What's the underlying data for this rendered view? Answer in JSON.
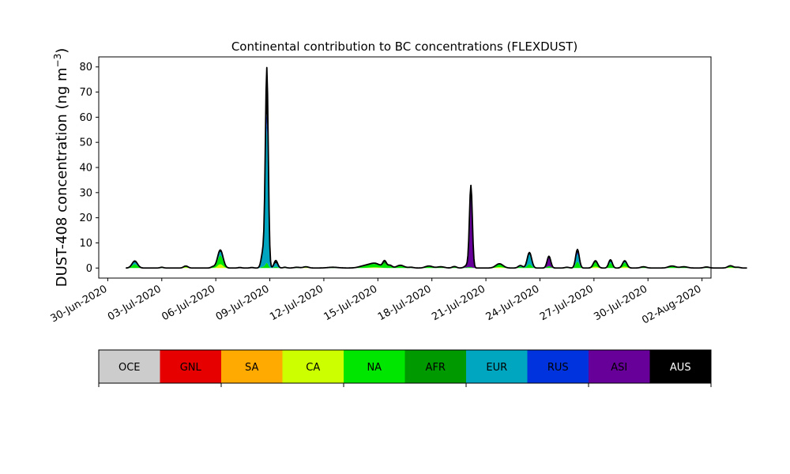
{
  "chart_data": {
    "type": "area",
    "stacked": true,
    "title": "Continental contribution to BC concentrations (FLEXDUST)",
    "ylabel": "DUST-408 concentration (ng m",
    "ylabel_unit_exponent": "−3",
    "ylabel_close": ")",
    "xlabel": "",
    "ylim": [
      -4,
      84
    ],
    "xlim": [
      "2020-06-29T12:00",
      "2020-08-02T12:00"
    ],
    "y_ticks": [
      0,
      10,
      20,
      30,
      40,
      50,
      60,
      70,
      80
    ],
    "x_ticks": [
      "30-Jun-2020",
      "03-Jul-2020",
      "06-Jul-2020",
      "09-Jul-2020",
      "12-Jul-2020",
      "15-Jul-2020",
      "18-Jul-2020",
      "21-Jul-2020",
      "24-Jul-2020",
      "27-Jul-2020",
      "30-Jul-2020",
      "02-Aug-2020"
    ],
    "x_tick_dates": [
      "2020-06-30",
      "2020-07-03",
      "2020-07-06",
      "2020-07-09",
      "2020-07-12",
      "2020-07-15",
      "2020-07-18",
      "2020-07-21",
      "2020-07-24",
      "2020-07-27",
      "2020-07-30",
      "2020-08-02"
    ],
    "grid": false,
    "legend_position": "bottom colorbar",
    "series": [
      {
        "name": "OCE",
        "color": "#cccccc"
      },
      {
        "name": "GNL",
        "color": "#e60000"
      },
      {
        "name": "SA",
        "color": "#ffaa00"
      },
      {
        "name": "CA",
        "color": "#ccff00"
      },
      {
        "name": "NA",
        "color": "#00e600"
      },
      {
        "name": "AFR",
        "color": "#009900"
      },
      {
        "name": "EUR",
        "color": "#00a5c0"
      },
      {
        "name": "RUS",
        "color": "#0033dd"
      },
      {
        "name": "ASI",
        "color": "#660099"
      },
      {
        "name": "AUS",
        "color": "#000000"
      }
    ],
    "peaks": [
      {
        "date": "2020-07-01T12:00",
        "width_days": 0.15,
        "NA": 1.5,
        "EUR": 0.8,
        "AUS": 0.5
      },
      {
        "date": "2020-07-03T00:00",
        "width_days": 0.1,
        "NA": 0.3
      },
      {
        "date": "2020-07-04T08:00",
        "width_days": 0.12,
        "CA": 0.3,
        "NA": 0.5
      },
      {
        "date": "2020-07-05T20:00",
        "width_days": 0.1,
        "NA": 0.5
      },
      {
        "date": "2020-07-06T06:00",
        "width_days": 0.15,
        "CA": 1.5,
        "NA": 3.5,
        "EUR": 1.5,
        "AUS": 0.7
      },
      {
        "date": "2020-07-07T08:00",
        "width_days": 0.1,
        "NA": 0.2
      },
      {
        "date": "2020-07-08T00:00",
        "width_days": 0.1,
        "NA": 0.2
      },
      {
        "date": "2020-07-08T20:00",
        "width_days": 0.08,
        "NA": 2,
        "EUR": 55,
        "RUS": 4,
        "AUS": 18
      },
      {
        "date": "2020-07-08T15:00",
        "width_days": 0.1,
        "NA": 0.5,
        "EUR": 5,
        "AUS": 1
      },
      {
        "date": "2020-07-09T08:00",
        "width_days": 0.1,
        "NA": 0.5,
        "EUR": 1.5,
        "AUS": 1
      },
      {
        "date": "2020-07-09T20:00",
        "width_days": 0.1,
        "NA": 0.3
      },
      {
        "date": "2020-07-10T12:00",
        "width_days": 0.15,
        "NA": 0.3
      },
      {
        "date": "2020-07-11T00:00",
        "width_days": 0.15,
        "CA": 0.2,
        "NA": 0.3
      },
      {
        "date": "2020-07-12T12:00",
        "width_days": 0.3,
        "NA": 0.3
      },
      {
        "date": "2020-07-14T06:00",
        "width_days": 0.3,
        "NA": 0.6,
        "AFR": 0.2
      },
      {
        "date": "2020-07-14T20:00",
        "width_days": 0.3,
        "CA": 0.3,
        "NA": 1.2,
        "AFR": 0.3
      },
      {
        "date": "2020-07-15T09:00",
        "width_days": 0.1,
        "NA": 1.5,
        "AFR": 0.5,
        "AUS": 0.6
      },
      {
        "date": "2020-07-15T16:00",
        "width_days": 0.12,
        "NA": 0.8,
        "AFR": 0.3
      },
      {
        "date": "2020-07-16T06:00",
        "width_days": 0.2,
        "NA": 0.8,
        "AFR": 0.3
      },
      {
        "date": "2020-07-16T20:00",
        "width_days": 0.15,
        "NA": 0.3
      },
      {
        "date": "2020-07-17T20:00",
        "width_days": 0.2,
        "NA": 0.6,
        "AFR": 0.2
      },
      {
        "date": "2020-07-18T12:00",
        "width_days": 0.2,
        "NA": 0.5
      },
      {
        "date": "2020-07-19T06:00",
        "width_days": 0.12,
        "NA": 0.3,
        "ASI": 0.3
      },
      {
        "date": "2020-07-20T00:00",
        "width_days": 0.15,
        "NA": 0.3,
        "ASI": 1.0
      },
      {
        "date": "2020-07-20T04:00",
        "width_days": 0.08,
        "NA": 0.2,
        "ASI": 28,
        "AUS": 4
      },
      {
        "date": "2020-07-21T18:00",
        "width_days": 0.2,
        "CA": 0.4,
        "NA": 1.0,
        "AFR": 0.3
      },
      {
        "date": "2020-07-22T22:00",
        "width_days": 0.12,
        "NA": 0.5,
        "EUR": 0.5
      },
      {
        "date": "2020-07-23T10:00",
        "width_days": 0.12,
        "NA": 1.5,
        "EUR": 4.0,
        "AUS": 0.7
      },
      {
        "date": "2020-07-24T12:00",
        "width_days": 0.1,
        "NA": 0.8,
        "ASI": 3.3,
        "AUS": 0.6
      },
      {
        "date": "2020-07-25T12:00",
        "width_days": 0.12,
        "NA": 0.3
      },
      {
        "date": "2020-07-26T02:00",
        "width_days": 0.1,
        "NA": 2.5,
        "EUR": 3.0,
        "RUS": 0.7,
        "AUS": 1.2
      },
      {
        "date": "2020-07-27T02:00",
        "width_days": 0.12,
        "CA": 0.6,
        "NA": 1.5,
        "AFR": 0.4,
        "AUS": 0.4
      },
      {
        "date": "2020-07-27T22:00",
        "width_days": 0.1,
        "NA": 2.0,
        "EUR": 0.6,
        "AUS": 0.7
      },
      {
        "date": "2020-07-28T17:00",
        "width_days": 0.12,
        "CA": 0.6,
        "NA": 1.5,
        "EUR": 0.3,
        "AUS": 0.5
      },
      {
        "date": "2020-07-29T18:00",
        "width_days": 0.15,
        "NA": 0.5
      },
      {
        "date": "2020-07-31T08:00",
        "width_days": 0.2,
        "NA": 0.6,
        "AFR": 0.2
      },
      {
        "date": "2020-08-01T00:00",
        "width_days": 0.2,
        "NA": 0.5
      },
      {
        "date": "2020-08-02T06:00",
        "width_days": 0.15,
        "NA": 0.4
      },
      {
        "date": "2020-08-03T14:00",
        "width_days": 0.15,
        "CA": 0.2,
        "NA": 0.4,
        "EUR": 0.3
      },
      {
        "date": "2020-08-04T00:00",
        "width_days": 0.12,
        "NA": 0.3
      }
    ],
    "series_start": "2020-07-01T00:00",
    "series_end": "2020-08-04T12:00"
  }
}
